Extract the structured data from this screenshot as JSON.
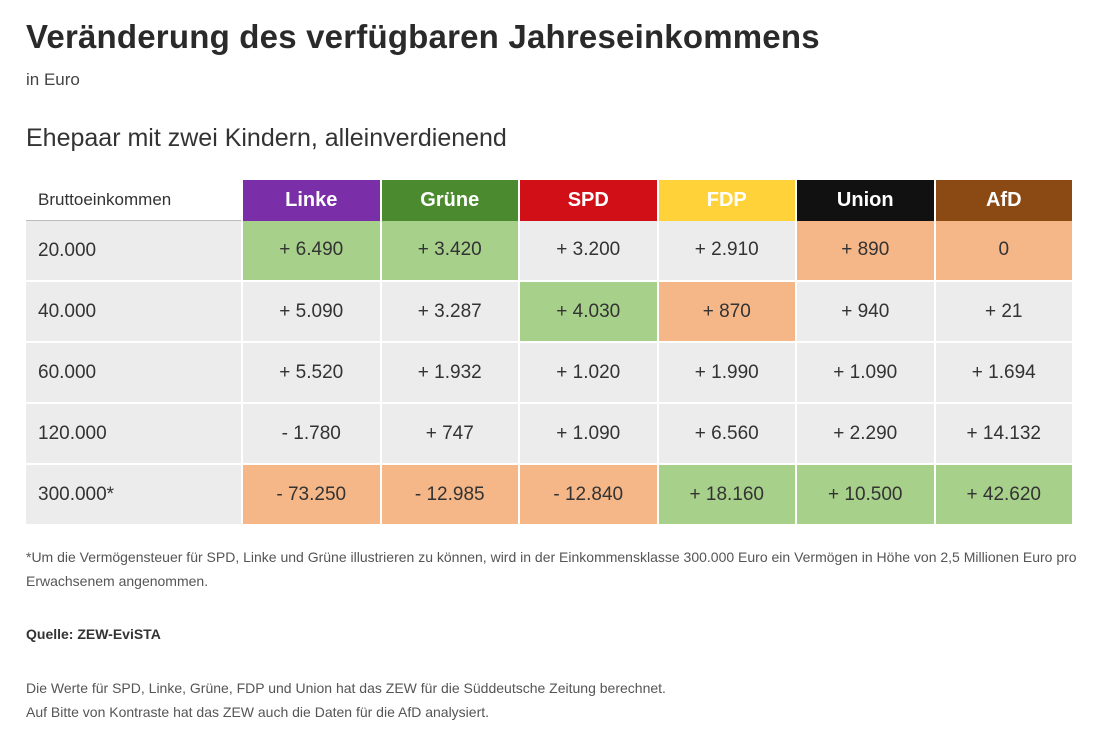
{
  "title": "Veränderung des verfügbaren Jahreseinkommens",
  "subtitle": "in Euro",
  "section": "Ehepaar mit zwei Kindern, alleinverdienend",
  "chart_data": {
    "type": "table",
    "row_header": "Bruttoeinkommen",
    "columns": [
      {
        "name": "Linke",
        "color": "#7a2ea8"
      },
      {
        "name": "Grüne",
        "color": "#4c8a2f"
      },
      {
        "name": "SPD",
        "color": "#d10f17"
      },
      {
        "name": "FDP",
        "color": "#ffd23a"
      },
      {
        "name": "Union",
        "color": "#111111"
      },
      {
        "name": "AfD",
        "color": "#8b4a14"
      }
    ],
    "rows": [
      {
        "label": "20.000",
        "cells": [
          {
            "value": "+ 6.490",
            "shade": "pos"
          },
          {
            "value": "+ 3.420",
            "shade": "pos"
          },
          {
            "value": "+ 3.200",
            "shade": "neu"
          },
          {
            "value": "+ 2.910",
            "shade": "neu"
          },
          {
            "value": "+ 890",
            "shade": "neg"
          },
          {
            "value": "0",
            "shade": "neg"
          }
        ]
      },
      {
        "label": "40.000",
        "cells": [
          {
            "value": "+ 5.090",
            "shade": "neu"
          },
          {
            "value": "+ 3.287",
            "shade": "neu"
          },
          {
            "value": "+ 4.030",
            "shade": "pos"
          },
          {
            "value": "+ 870",
            "shade": "neg"
          },
          {
            "value": "+ 940",
            "shade": "neu"
          },
          {
            "value": "+ 21",
            "shade": "neu"
          }
        ]
      },
      {
        "label": "60.000",
        "cells": [
          {
            "value": "+ 5.520",
            "shade": "neu"
          },
          {
            "value": "+ 1.932",
            "shade": "neu"
          },
          {
            "value": "+ 1.020",
            "shade": "neu"
          },
          {
            "value": "+ 1.990",
            "shade": "neu"
          },
          {
            "value": "+ 1.090",
            "shade": "neu"
          },
          {
            "value": "+ 1.694",
            "shade": "neu"
          }
        ]
      },
      {
        "label": "120.000",
        "cells": [
          {
            "value": "- 1.780",
            "shade": "neu"
          },
          {
            "value": "+ 747",
            "shade": "neu"
          },
          {
            "value": "+ 1.090",
            "shade": "neu"
          },
          {
            "value": "+ 6.560",
            "shade": "neu"
          },
          {
            "value": "+ 2.290",
            "shade": "neu"
          },
          {
            "value": "+ 14.132",
            "shade": "neu"
          }
        ]
      },
      {
        "label": "300.000*",
        "cells": [
          {
            "value": "- 73.250",
            "shade": "neg"
          },
          {
            "value": "- 12.985",
            "shade": "neg"
          },
          {
            "value": "- 12.840",
            "shade": "neg"
          },
          {
            "value": "+ 18.160",
            "shade": "pos"
          },
          {
            "value": "+ 10.500",
            "shade": "pos"
          },
          {
            "value": "+ 42.620",
            "shade": "pos"
          }
        ]
      }
    ]
  },
  "footnote": "*Um die Vermögensteuer für SPD, Linke und Grüne illustrieren zu können, wird in der Einkommensklasse 300.000 Euro ein Vermögen in Höhe von 2,5 Millionen Euro pro Erwachsenem angenommen.",
  "source": "Quelle: ZEW-EviSTA",
  "notes": [
    "Die Werte für SPD, Linke, Grüne, FDP und Union hat das ZEW für die Süddeutsche Zeitung berechnet.",
    "Auf Bitte von Kontraste hat das ZEW auch die Daten für die AfD analysiert."
  ]
}
